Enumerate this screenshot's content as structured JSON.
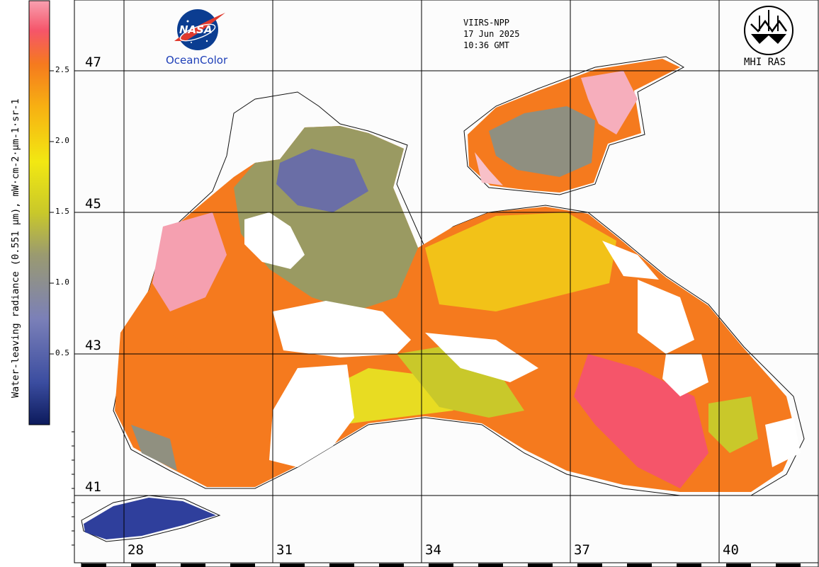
{
  "satellite": {
    "sensor": "VIIRS-NPP",
    "date": "17 Jun 2025",
    "time": "10:36 GMT"
  },
  "logos": {
    "nasa": {
      "text": "NASA",
      "caption": "OceanColor"
    },
    "institute": {
      "caption": "MHI RAS"
    }
  },
  "colorbar": {
    "title": "Water-leaving radiance (0.551 µm), mW·cm-2·µm-1·sr-1",
    "ticks": [
      "2.5",
      "2.0",
      "1.5",
      "1.0",
      "0.5"
    ],
    "stops": [
      "#0c1a5c",
      "#3b4da0",
      "#7b80b8",
      "#9a9a70",
      "#c9c82a",
      "#f2e812",
      "#f7b012",
      "#f57a1e",
      "#f5556a",
      "#f8a0b0"
    ]
  },
  "grid": {
    "latitudes": [
      "47",
      "45",
      "43",
      "41"
    ],
    "longitudes": [
      "28",
      "31",
      "34",
      "37",
      "40"
    ]
  }
}
